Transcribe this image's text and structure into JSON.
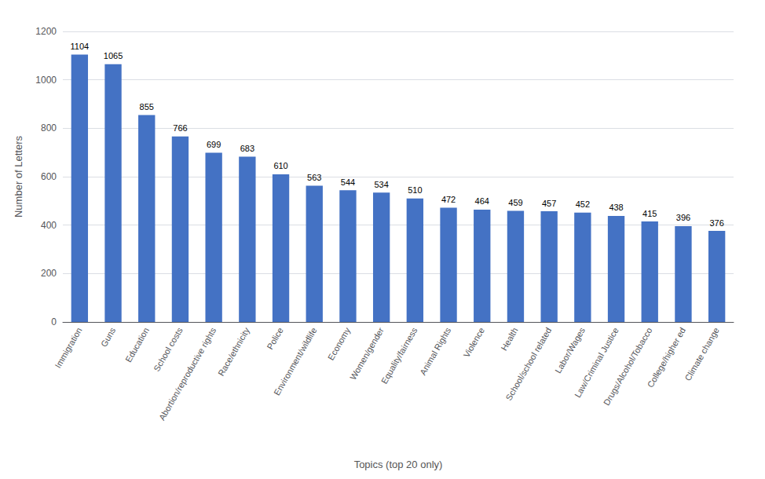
{
  "chart_data": {
    "type": "bar",
    "categories": [
      "Immigration",
      "Guns",
      "Education",
      "School costs",
      "Abortion/reproductive rights",
      "Race/ethnicity",
      "Police",
      "Environment/wildlife",
      "Economy",
      "Women/gender",
      "Equality/fairness",
      "Animal Rights",
      "Violence",
      "Health",
      "School/school related",
      "Labor/Wages",
      "Law/Criminal Justice",
      "Drugs/Alcohol/Tobacco",
      "College/higher ed",
      "Climate change"
    ],
    "values": [
      1104,
      1065,
      855,
      766,
      699,
      683,
      610,
      563,
      544,
      534,
      510,
      472,
      464,
      459,
      457,
      452,
      438,
      415,
      396,
      376
    ],
    "color": "#4472C4",
    "xlabel": "Topics (top 20 only)",
    "ylabel": "Number of Letters",
    "ylim": [
      0,
      1200
    ],
    "yticks": [
      0,
      200,
      400,
      600,
      800,
      1000,
      1200
    ],
    "grid": true,
    "data_labels": true
  }
}
